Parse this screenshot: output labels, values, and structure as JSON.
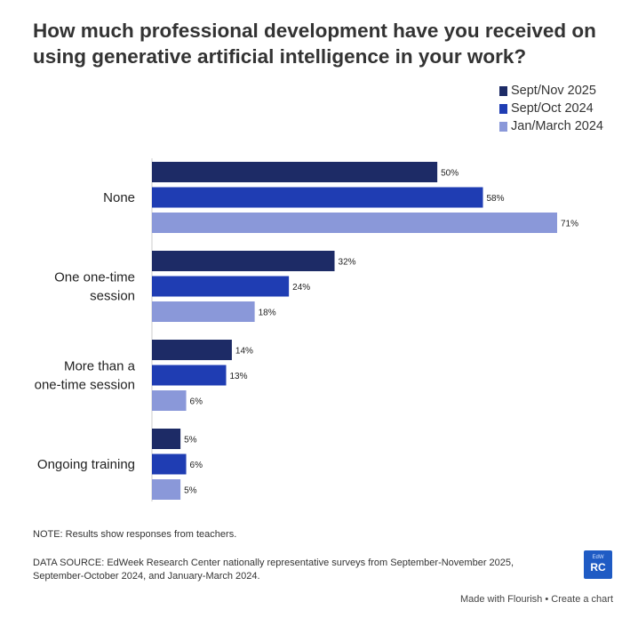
{
  "chart_data": {
    "type": "bar",
    "orientation": "horizontal",
    "title": "How much professional development have you received on using generative artificial intelligence in your work?",
    "categories": [
      [
        "None"
      ],
      [
        "One one-time",
        "session"
      ],
      [
        "More than a",
        "one-time session"
      ],
      [
        "Ongoing training"
      ]
    ],
    "series": [
      {
        "name": "Sept/Nov 2025",
        "color": "#1d2b66",
        "values": [
          50,
          32,
          14,
          5
        ]
      },
      {
        "name": "Sept/Oct 2024",
        "color": "#1f3db3",
        "values": [
          58,
          24,
          13,
          6
        ]
      },
      {
        "name": "Jan/March 2024",
        "color": "#8a98d9",
        "values": [
          71,
          18,
          6,
          5
        ]
      }
    ],
    "value_suffix": "%",
    "xlim": [
      0,
      71
    ],
    "legend_position": "top-right",
    "grid": false
  },
  "note": "NOTE: Results show responses from teachers.",
  "source": "DATA SOURCE: EdWeek Research Center nationally representative surveys from September-November 2025, September-October 2024, and January-March 2024.",
  "badge": {
    "line1": "EdW",
    "line2": "RC"
  },
  "footer": {
    "made_with": "Made with Flourish",
    "separator": "•",
    "create": "Create a chart"
  }
}
